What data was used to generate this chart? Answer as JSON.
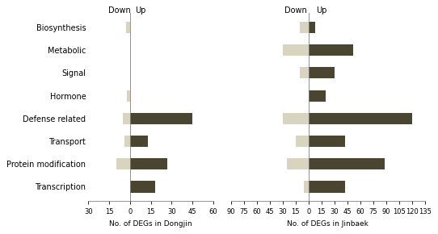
{
  "categories": [
    "Transcription",
    "Protein modification",
    "Transport",
    "Defense related",
    "Hormone",
    "Signal",
    "Metabolic",
    "Biosynthesis"
  ],
  "dongjin_down": [
    0,
    10,
    4,
    5,
    2,
    0,
    0,
    3
  ],
  "dongjin_up": [
    18,
    27,
    13,
    45,
    0,
    0,
    0,
    0
  ],
  "jinbaek_down": [
    5,
    25,
    15,
    30,
    0,
    10,
    30,
    10
  ],
  "jinbaek_up": [
    42,
    88,
    42,
    120,
    20,
    30,
    52,
    8
  ],
  "dongjin_xlim": [
    -30,
    60
  ],
  "dongjin_xticks": [
    -30,
    -15,
    0,
    15,
    30,
    45,
    60
  ],
  "dongjin_xticklabels": [
    "30",
    "15",
    "0",
    "15",
    "30",
    "45",
    "60"
  ],
  "jinbaek_xlim": [
    -90,
    135
  ],
  "jinbaek_xticks": [
    -90,
    -75,
    -60,
    -45,
    -30,
    -15,
    0,
    15,
    30,
    45,
    60,
    75,
    90,
    105,
    120,
    135
  ],
  "jinbaek_xticklabels": [
    "90",
    "75",
    "60",
    "45",
    "30",
    "15",
    "0",
    "15",
    "30",
    "45",
    "60",
    "75",
    "90",
    "105",
    "120",
    "135"
  ],
  "color_down": "#d9d4c0",
  "color_up": "#4a4530",
  "xlabel_dongjin": "No. of DEGs in Dongjin",
  "xlabel_jinbaek": "No. of DEGs in Jinbaek",
  "label_down": "Down",
  "label_up": "Up",
  "bar_height": 0.5,
  "tick_fontsize": 6,
  "label_fontsize": 6.5,
  "ylabel_fontsize": 7,
  "header_fontsize": 7
}
